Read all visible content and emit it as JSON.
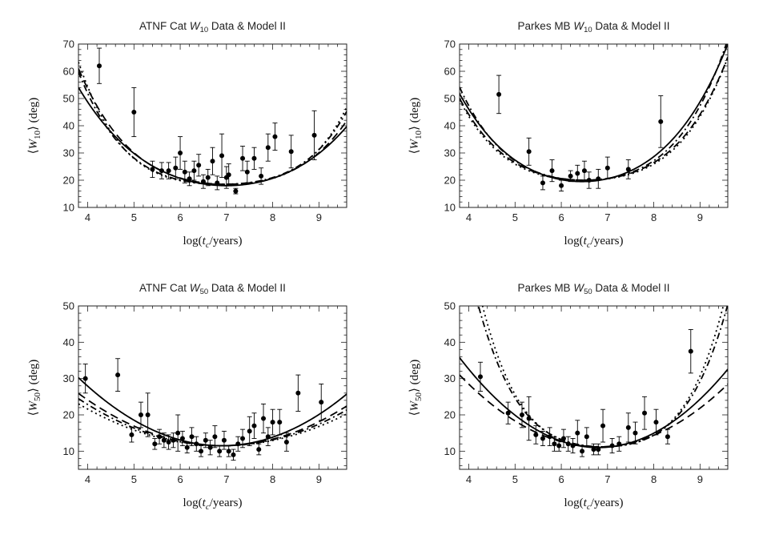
{
  "chart_data": [
    {
      "type": "scatter",
      "title": "ATNF Cat W10 Data & Model II",
      "title_parts": {
        "prefix": "ATNF Cat ",
        "var": "W",
        "sub": "10",
        "suffix": " Data & Model II"
      },
      "xlabel": "log(t_c/years)",
      "xlabel_parts": {
        "pre": "log(",
        "var": "t",
        "sub": "c",
        "post": "/years)"
      },
      "ylabel": "<W10> (deg)",
      "ylabel_parts": {
        "open": "⟨",
        "var": "W",
        "sub": "10",
        "close": "⟩",
        "unit": " (deg)"
      },
      "xlim": [
        3.8,
        9.6
      ],
      "ylim": [
        10,
        70
      ],
      "xticks": [
        4,
        5,
        6,
        7,
        8,
        9
      ],
      "yticks": [
        10,
        20,
        30,
        40,
        50,
        60,
        70
      ],
      "points": [
        {
          "x": 4.25,
          "y": 62,
          "err": 6.5
        },
        {
          "x": 5.0,
          "y": 45,
          "err": 9
        },
        {
          "x": 5.4,
          "y": 24,
          "err": 3
        },
        {
          "x": 5.6,
          "y": 23.5,
          "err": 3
        },
        {
          "x": 5.75,
          "y": 23.5,
          "err": 3
        },
        {
          "x": 5.9,
          "y": 24.5,
          "err": 4
        },
        {
          "x": 6.0,
          "y": 30,
          "err": 6
        },
        {
          "x": 6.1,
          "y": 23,
          "err": 4
        },
        {
          "x": 6.2,
          "y": 20.5,
          "err": 2.5
        },
        {
          "x": 6.3,
          "y": 23.5,
          "err": 3.5
        },
        {
          "x": 6.4,
          "y": 25.5,
          "err": 4
        },
        {
          "x": 6.5,
          "y": 19.5,
          "err": 2.5
        },
        {
          "x": 6.6,
          "y": 21,
          "err": 3
        },
        {
          "x": 6.7,
          "y": 27,
          "err": 5
        },
        {
          "x": 6.8,
          "y": 19,
          "err": 2.5
        },
        {
          "x": 6.9,
          "y": 29,
          "err": 8
        },
        {
          "x": 7.0,
          "y": 21,
          "err": 4
        },
        {
          "x": 7.05,
          "y": 22,
          "err": 4
        },
        {
          "x": 7.2,
          "y": 16,
          "err": 1
        },
        {
          "x": 7.35,
          "y": 28,
          "err": 4.5
        },
        {
          "x": 7.45,
          "y": 23,
          "err": 4
        },
        {
          "x": 7.6,
          "y": 28,
          "err": 4
        },
        {
          "x": 7.75,
          "y": 21.5,
          "err": 3
        },
        {
          "x": 7.9,
          "y": 32,
          "err": 5
        },
        {
          "x": 8.05,
          "y": 36,
          "err": 5
        },
        {
          "x": 8.4,
          "y": 30.5,
          "err": 6
        },
        {
          "x": 8.9,
          "y": 36.5,
          "err": 9
        }
      ],
      "series": [
        {
          "name": "solid",
          "dash": "",
          "x0": 7.0,
          "a": 2.6,
          "b": 0.09,
          "y0": 18
        },
        {
          "name": "dashed",
          "dash": "10,6",
          "x0": 7.0,
          "a": 2.1,
          "b": 0.2,
          "y0": 18.5
        },
        {
          "name": "dotted",
          "dash": "2,4",
          "x0": 6.9,
          "a": 1.4,
          "b": 0.34,
          "y0": 18.5
        },
        {
          "name": "dash-dot",
          "dash": "8,4,2,4",
          "x0": 6.9,
          "a": 1.7,
          "b": 0.27,
          "y0": 18.5
        }
      ]
    },
    {
      "type": "scatter",
      "title": "Parkes MB W10 Data & Model II",
      "title_parts": {
        "prefix": "Parkes MB ",
        "var": "W",
        "sub": "10",
        "suffix": " Data & Model II"
      },
      "xlabel": "log(t_c/years)",
      "xlabel_parts": {
        "pre": "log(",
        "var": "t",
        "sub": "c",
        "post": "/years)"
      },
      "ylabel": "<W10> (deg)",
      "ylabel_parts": {
        "open": "⟨",
        "var": "W",
        "sub": "10",
        "close": "⟩",
        "unit": " (deg)"
      },
      "xlim": [
        3.8,
        9.6
      ],
      "ylim": [
        10,
        70
      ],
      "xticks": [
        4,
        5,
        6,
        7,
        8,
        9
      ],
      "yticks": [
        10,
        20,
        30,
        40,
        50,
        60,
        70
      ],
      "points": [
        {
          "x": 4.65,
          "y": 51.5,
          "err": 7
        },
        {
          "x": 5.3,
          "y": 30.5,
          "err": 5
        },
        {
          "x": 5.6,
          "y": 19,
          "err": 2.5
        },
        {
          "x": 5.8,
          "y": 23.5,
          "err": 4
        },
        {
          "x": 6.0,
          "y": 18,
          "err": 2
        },
        {
          "x": 6.2,
          "y": 21.5,
          "err": 2
        },
        {
          "x": 6.35,
          "y": 22.5,
          "err": 3
        },
        {
          "x": 6.5,
          "y": 23.5,
          "err": 3.5
        },
        {
          "x": 6.6,
          "y": 20,
          "err": 3
        },
        {
          "x": 6.8,
          "y": 20.5,
          "err": 3.5
        },
        {
          "x": 7.0,
          "y": 24.5,
          "err": 4
        },
        {
          "x": 7.45,
          "y": 24,
          "err": 3.5
        },
        {
          "x": 8.15,
          "y": 41.5,
          "err": 9.5
        }
      ],
      "series": [
        {
          "name": "solid",
          "dash": "",
          "x0": 6.45,
          "a": 3.4,
          "b": 0.17,
          "y0": 19.5
        },
        {
          "name": "dashed",
          "dash": "10,6",
          "x0": 6.5,
          "a": 2.3,
          "b": 0.25,
          "y0": 20
        },
        {
          "name": "dotted",
          "dash": "2,4",
          "x0": 6.5,
          "a": 2.0,
          "b": 0.28,
          "y0": 20
        },
        {
          "name": "dash-dot",
          "dash": "8,4,2,4",
          "x0": 6.5,
          "a": 2.5,
          "b": 0.3,
          "y0": 20
        }
      ]
    },
    {
      "type": "scatter",
      "title": "ATNF Cat W50 Data & Model II",
      "title_parts": {
        "prefix": "ATNF Cat ",
        "var": "W",
        "sub": "50",
        "suffix": " Data & Model II"
      },
      "xlabel": "log(t_c/years)",
      "xlabel_parts": {
        "pre": "log(",
        "var": "t",
        "sub": "c",
        "post": "/years)"
      },
      "ylabel": "<W50> (deg)",
      "ylabel_parts": {
        "open": "⟨",
        "var": "W",
        "sub": "50",
        "close": "⟩",
        "unit": " (deg)"
      },
      "xlim": [
        3.8,
        9.6
      ],
      "ylim": [
        5,
        50
      ],
      "xticks": [
        4,
        5,
        6,
        7,
        8,
        9
      ],
      "yticks": [
        10,
        20,
        30,
        40,
        50
      ],
      "points": [
        {
          "x": 3.95,
          "y": 30,
          "err": 4
        },
        {
          "x": 4.65,
          "y": 31,
          "err": 4.5
        },
        {
          "x": 4.95,
          "y": 14.5,
          "err": 2
        },
        {
          "x": 5.15,
          "y": 20,
          "err": 3.5
        },
        {
          "x": 5.3,
          "y": 20,
          "err": 6
        },
        {
          "x": 5.45,
          "y": 12,
          "err": 1.5
        },
        {
          "x": 5.55,
          "y": 14,
          "err": 2
        },
        {
          "x": 5.65,
          "y": 13,
          "err": 2
        },
        {
          "x": 5.75,
          "y": 12.5,
          "err": 2
        },
        {
          "x": 5.85,
          "y": 13,
          "err": 2
        },
        {
          "x": 5.95,
          "y": 15,
          "err": 5
        },
        {
          "x": 6.05,
          "y": 13.5,
          "err": 2
        },
        {
          "x": 6.15,
          "y": 11,
          "err": 1.5
        },
        {
          "x": 6.25,
          "y": 14,
          "err": 2.5
        },
        {
          "x": 6.35,
          "y": 12,
          "err": 2
        },
        {
          "x": 6.45,
          "y": 10,
          "err": 1.5
        },
        {
          "x": 6.55,
          "y": 13,
          "err": 2
        },
        {
          "x": 6.65,
          "y": 11,
          "err": 2
        },
        {
          "x": 6.75,
          "y": 14,
          "err": 3
        },
        {
          "x": 6.85,
          "y": 10,
          "err": 1.5
        },
        {
          "x": 6.95,
          "y": 13,
          "err": 2.5
        },
        {
          "x": 7.05,
          "y": 10,
          "err": 1.5
        },
        {
          "x": 7.15,
          "y": 9,
          "err": 1.5
        },
        {
          "x": 7.25,
          "y": 12,
          "err": 2
        },
        {
          "x": 7.35,
          "y": 13.5,
          "err": 2.5
        },
        {
          "x": 7.5,
          "y": 15.5,
          "err": 4
        },
        {
          "x": 7.6,
          "y": 17,
          "err": 3.5
        },
        {
          "x": 7.7,
          "y": 10.5,
          "err": 1.5
        },
        {
          "x": 7.8,
          "y": 19,
          "err": 4
        },
        {
          "x": 7.9,
          "y": 14,
          "err": 2.5
        },
        {
          "x": 8.0,
          "y": 18,
          "err": 3.5
        },
        {
          "x": 8.15,
          "y": 18,
          "err": 3.5
        },
        {
          "x": 8.3,
          "y": 12.5,
          "err": 2.5
        },
        {
          "x": 8.55,
          "y": 26,
          "err": 5
        },
        {
          "x": 9.05,
          "y": 23.5,
          "err": 5
        }
      ],
      "series": [
        {
          "name": "solid",
          "dash": "",
          "x0": 6.9,
          "a": 1.95,
          "b": 0.0,
          "y0": 11.5
        },
        {
          "name": "dashed",
          "dash": "10,6",
          "x0": 6.9,
          "a": 1.5,
          "b": 0.0,
          "y0": 11.5
        },
        {
          "name": "dotted",
          "dash": "2,4",
          "x0": 6.9,
          "a": 1.2,
          "b": 0.0,
          "y0": 11.5
        },
        {
          "name": "dash-dot",
          "dash": "8,4,2,4",
          "x0": 6.9,
          "a": 1.35,
          "b": 0.0,
          "y0": 11.5
        }
      ]
    },
    {
      "type": "scatter",
      "title": "Parkes MB W50 Data & Model II",
      "title_parts": {
        "prefix": "Parkes MB ",
        "var": "W",
        "sub": "50",
        "suffix": " Data & Model II"
      },
      "xlabel": "log(t_c/years)",
      "xlabel_parts": {
        "pre": "log(",
        "var": "t",
        "sub": "c",
        "post": "/years)"
      },
      "ylabel": "<W50> (deg)",
      "ylabel_parts": {
        "open": "⟨",
        "var": "W",
        "sub": "50",
        "close": "⟩",
        "unit": " (deg)"
      },
      "xlim": [
        3.8,
        9.6
      ],
      "ylim": [
        5,
        50
      ],
      "xticks": [
        4,
        5,
        6,
        7,
        8,
        9
      ],
      "yticks": [
        10,
        20,
        30,
        40,
        50
      ],
      "points": [
        {
          "x": 4.25,
          "y": 30.5,
          "err": 4
        },
        {
          "x": 4.85,
          "y": 20.5,
          "err": 3
        },
        {
          "x": 5.15,
          "y": 20,
          "err": 3.5
        },
        {
          "x": 5.3,
          "y": 19,
          "err": 6
        },
        {
          "x": 5.45,
          "y": 14.5,
          "err": 2.5
        },
        {
          "x": 5.6,
          "y": 13.5,
          "err": 2
        },
        {
          "x": 5.75,
          "y": 14,
          "err": 2.5
        },
        {
          "x": 5.85,
          "y": 12,
          "err": 2
        },
        {
          "x": 5.95,
          "y": 11.5,
          "err": 1.5
        },
        {
          "x": 6.05,
          "y": 13.5,
          "err": 2.5
        },
        {
          "x": 6.15,
          "y": 12,
          "err": 2
        },
        {
          "x": 6.25,
          "y": 11.5,
          "err": 2
        },
        {
          "x": 6.35,
          "y": 15,
          "err": 3.5
        },
        {
          "x": 6.45,
          "y": 10,
          "err": 1.5
        },
        {
          "x": 6.55,
          "y": 14,
          "err": 2.5
        },
        {
          "x": 6.7,
          "y": 10.5,
          "err": 1.5
        },
        {
          "x": 6.8,
          "y": 10.5,
          "err": 1.5
        },
        {
          "x": 6.9,
          "y": 17,
          "err": 4.5
        },
        {
          "x": 7.1,
          "y": 11.5,
          "err": 2
        },
        {
          "x": 7.25,
          "y": 12,
          "err": 2
        },
        {
          "x": 7.45,
          "y": 16.5,
          "err": 4
        },
        {
          "x": 7.6,
          "y": 15,
          "err": 3
        },
        {
          "x": 7.8,
          "y": 20.5,
          "err": 4.5
        },
        {
          "x": 8.05,
          "y": 18,
          "err": 3.5
        },
        {
          "x": 8.3,
          "y": 14,
          "err": 2
        },
        {
          "x": 8.8,
          "y": 37.5,
          "err": 6
        }
      ],
      "series": [
        {
          "name": "solid",
          "dash": "",
          "x0": 6.8,
          "a": 2.75,
          "b": 0.0,
          "y0": 11
        },
        {
          "name": "dashed",
          "dash": "10,6",
          "x0": 6.8,
          "a": 2.2,
          "b": 0.0,
          "y0": 11.2
        },
        {
          "name": "dotted",
          "dash": "2,4",
          "x0": 6.9,
          "a": 2.0,
          "b": 0.55,
          "y0": 11.2
        },
        {
          "name": "dash-dot",
          "dash": "8,4,2,4",
          "x0": 6.9,
          "a": 2.1,
          "b": 0.45,
          "y0": 11.2
        }
      ]
    }
  ]
}
